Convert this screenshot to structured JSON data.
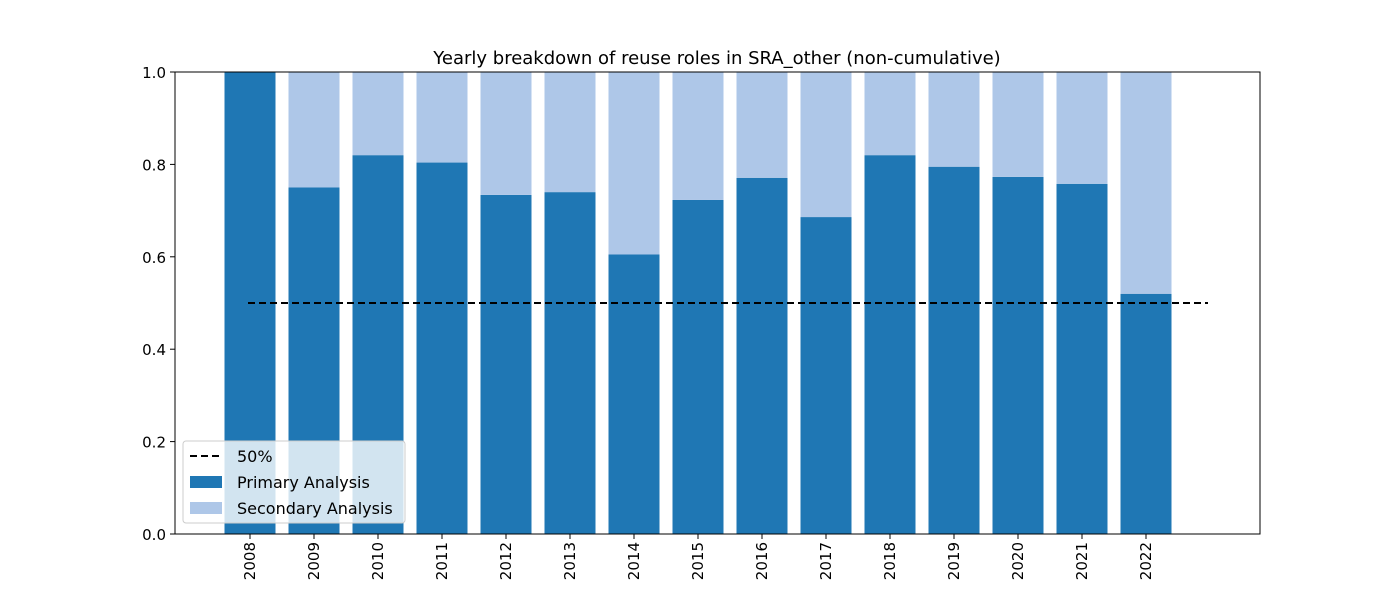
{
  "chart_data": {
    "type": "bar",
    "stacked": true,
    "title": "Yearly breakdown of reuse roles in SRA_other (non-cumulative)",
    "xlabel": "",
    "ylabel": "",
    "ylim": [
      0,
      1.0
    ],
    "yticks": [
      "0.0",
      "0.2",
      "0.4",
      "0.6",
      "0.8",
      "1.0"
    ],
    "categories": [
      "2008",
      "2009",
      "2010",
      "2011",
      "2012",
      "2013",
      "2014",
      "2015",
      "2016",
      "2017",
      "2018",
      "2019",
      "2020",
      "2021",
      "2022"
    ],
    "series": [
      {
        "name": "Primary Analysis",
        "color": "#1f77b4",
        "values": [
          1.0,
          0.75,
          0.82,
          0.804,
          0.734,
          0.74,
          0.605,
          0.723,
          0.771,
          0.686,
          0.82,
          0.795,
          0.773,
          0.758,
          0.52
        ]
      },
      {
        "name": "Secondary Analysis",
        "color": "#aec7e8",
        "values": [
          0.0,
          0.25,
          0.18,
          0.196,
          0.266,
          0.26,
          0.395,
          0.277,
          0.229,
          0.314,
          0.18,
          0.205,
          0.227,
          0.242,
          0.48
        ]
      }
    ],
    "reference_line": {
      "label": "50%",
      "value": 0.5,
      "style": "dashed",
      "color": "#000000"
    },
    "legend": {
      "placement": "lower-left",
      "entries": [
        "50%",
        "Primary Analysis",
        "Secondary Analysis"
      ]
    },
    "grid": false
  }
}
